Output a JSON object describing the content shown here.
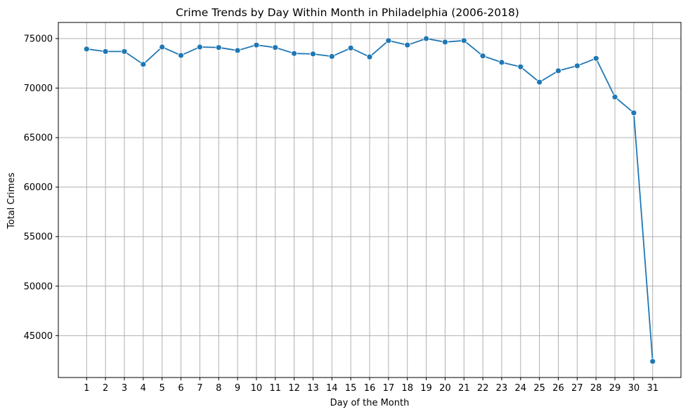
{
  "chart_data": {
    "type": "line",
    "title": "Crime Trends by Day Within Month in Philadelphia (2006-2018)",
    "xlabel": "Day of the Month",
    "ylabel": "Total Crimes",
    "x": [
      1,
      2,
      3,
      4,
      5,
      6,
      7,
      8,
      9,
      10,
      11,
      12,
      13,
      14,
      15,
      16,
      17,
      18,
      19,
      20,
      21,
      22,
      23,
      24,
      25,
      26,
      27,
      28,
      29,
      30,
      31
    ],
    "series": [
      {
        "color": "#1f77b4",
        "marker": "circle",
        "values": [
          73950,
          73700,
          73700,
          72400,
          74150,
          73300,
          74150,
          74100,
          73800,
          74350,
          74100,
          73500,
          73450,
          73200,
          74050,
          73150,
          74800,
          74350,
          75000,
          74650,
          74800,
          73250,
          72600,
          72150,
          70600,
          71750,
          72250,
          73000,
          69100,
          67500,
          42400
        ]
      }
    ],
    "xticks": [
      1,
      2,
      3,
      4,
      5,
      6,
      7,
      8,
      9,
      10,
      11,
      12,
      13,
      14,
      15,
      16,
      17,
      18,
      19,
      20,
      21,
      22,
      23,
      24,
      25,
      26,
      27,
      28,
      29,
      30,
      31
    ],
    "yticks": [
      45000,
      50000,
      55000,
      60000,
      65000,
      70000,
      75000
    ],
    "xlim": [
      -0.5,
      32.5
    ],
    "ylim": [
      40770,
      76630
    ],
    "grid": true,
    "legend": "none"
  }
}
